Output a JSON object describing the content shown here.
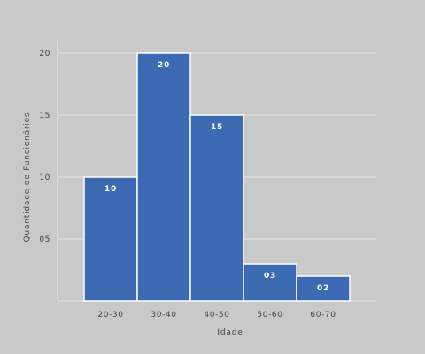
{
  "chart_data": {
    "type": "bar",
    "title": "",
    "xlabel": "Idade",
    "ylabel": "Quantidade de Funcionários",
    "categories": [
      "20-30",
      "30-40",
      "40-50",
      "50-60",
      "60-70"
    ],
    "values": [
      10,
      20,
      15,
      3,
      2
    ],
    "data_labels": [
      "10",
      "20",
      "15",
      "03",
      "02"
    ],
    "yticks": [
      0,
      5,
      10,
      15,
      20
    ],
    "ytick_labels": [
      "",
      "05",
      "10",
      "15",
      "20"
    ],
    "ylim": [
      0,
      20
    ],
    "grid": true,
    "bar_color": "#3d6bb3",
    "bar_edge_color": "#ffffff",
    "background_color": "#c9c9c9",
    "grid_color": "#e6e6e6"
  }
}
